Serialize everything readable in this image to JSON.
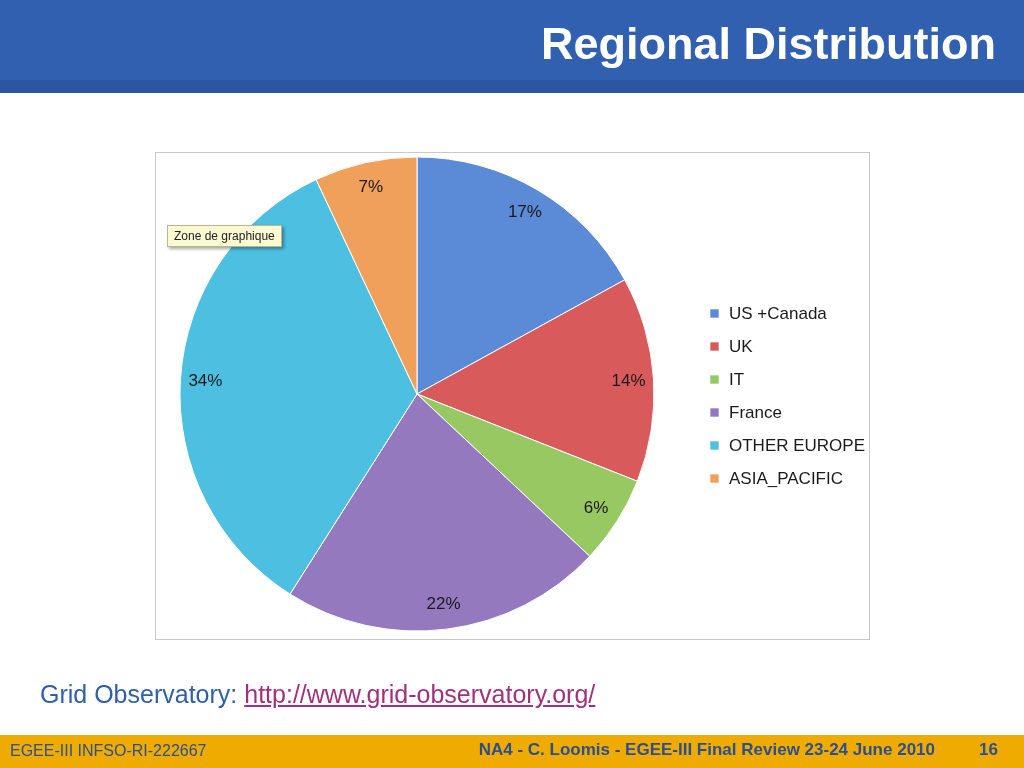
{
  "chart_data": {
    "type": "pie",
    "title": "Regional Distribution",
    "categories": [
      "US +Canada",
      "UK",
      "IT",
      "France",
      "OTHER EUROPE",
      "ASIA_PACIFIC"
    ],
    "values": [
      17,
      14,
      6,
      22,
      34,
      7
    ],
    "colors": [
      "#5b8ad6",
      "#d95a5a",
      "#98c862",
      "#9479bf",
      "#4dbfe0",
      "#f0a05a"
    ],
    "value_labels": [
      "17%",
      "14%",
      "6%",
      "22%",
      "34%",
      "7%"
    ],
    "legend": "right",
    "annotations": [
      "Zone de graphique",
      "Grid Observatory:",
      "http://www.grid-observatory.org/",
      "EGEE-III INFSO-RI-222667",
      "NA4 - C. Loomis - EGEE-III Final Review 23-24 June 2010",
      "16"
    ]
  }
}
